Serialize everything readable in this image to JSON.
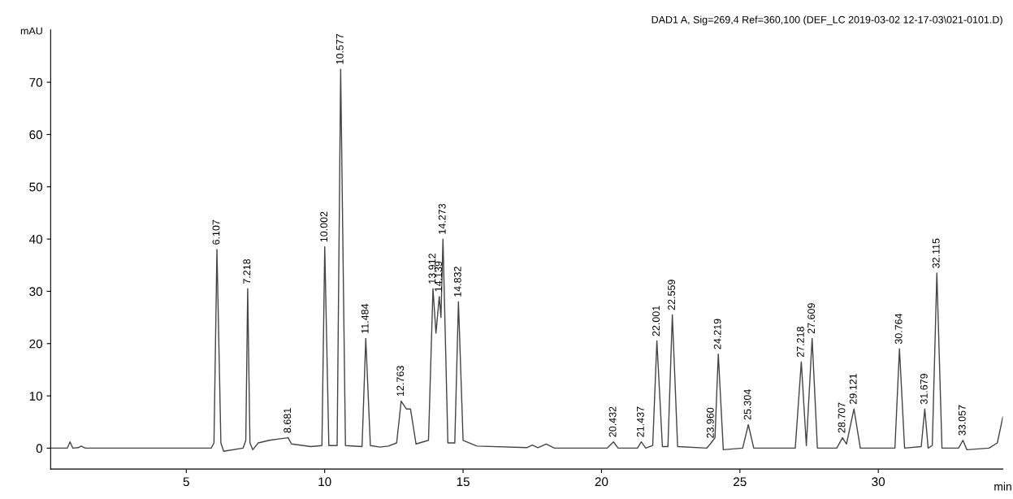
{
  "chart_data": {
    "type": "line",
    "title": "DAD1 A, Sig=269,4 Ref=360,100 (DEF_LC 2019-03-02 12-17-03\\021-0101.D)",
    "ylabel": "mAU",
    "xlabel": "min",
    "xlim": [
      0.1,
      34.5
    ],
    "ylim": [
      -4,
      80
    ],
    "xticks": [
      5,
      10,
      15,
      20,
      25,
      30
    ],
    "yticks": [
      0,
      10,
      20,
      30,
      40,
      50,
      60,
      70
    ],
    "grid": false,
    "legend": false,
    "series": [
      {
        "color": "#444444",
        "x": [
          0.1,
          0.7,
          0.8,
          0.9,
          1.1,
          1.2,
          1.35,
          5.9,
          6.0,
          6.107,
          6.25,
          6.35,
          7.05,
          7.15,
          7.218,
          7.3,
          7.4,
          7.6,
          8.0,
          8.4,
          8.681,
          8.8,
          9.5,
          9.9,
          10.002,
          10.15,
          10.45,
          10.577,
          10.75,
          11.35,
          11.484,
          11.65,
          12.0,
          12.3,
          12.6,
          12.763,
          12.95,
          13.1,
          13.3,
          13.75,
          13.912,
          14.02,
          14.139,
          14.2,
          14.273,
          14.45,
          14.7,
          14.832,
          15.0,
          15.5,
          17.3,
          17.5,
          17.7,
          18.0,
          18.3,
          20.2,
          20.432,
          20.6,
          21.3,
          21.437,
          21.6,
          21.85,
          22.001,
          22.2,
          22.4,
          22.559,
          22.75,
          23.8,
          23.96,
          24.1,
          24.219,
          24.4,
          25.1,
          25.304,
          25.5,
          27.0,
          27.218,
          27.4,
          27.609,
          27.8,
          28.5,
          28.707,
          28.85,
          29.121,
          29.35,
          30.6,
          30.764,
          30.95,
          31.55,
          31.679,
          31.8,
          31.95,
          32.115,
          32.3,
          32.9,
          33.057,
          33.2,
          34.0,
          34.3,
          34.5
        ],
        "values": [
          0,
          0,
          1.2,
          0,
          0.1,
          0.4,
          0,
          0,
          1,
          38,
          1,
          -0.6,
          0,
          1.5,
          30.5,
          1,
          -0.3,
          1,
          1.5,
          1.8,
          2,
          0.8,
          0.3,
          0.5,
          38.5,
          0.5,
          0.5,
          72.5,
          0.5,
          0.3,
          21,
          0.5,
          0.2,
          0.4,
          1,
          9,
          7.5,
          7.5,
          0.8,
          1.5,
          30.5,
          22,
          29,
          25,
          40,
          1,
          1,
          28,
          1.5,
          0.4,
          0.1,
          0.6,
          0.1,
          0.8,
          0,
          0,
          1.2,
          0,
          0,
          1.2,
          0,
          0.5,
          20.5,
          0.3,
          0.3,
          25.5,
          0.3,
          0,
          1,
          2,
          18,
          -0.3,
          0,
          4.5,
          0,
          0,
          16.5,
          0.5,
          21,
          0,
          0,
          2,
          0.8,
          7.5,
          0,
          0,
          19,
          0,
          0.3,
          7.5,
          0,
          0.5,
          33.5,
          0,
          0,
          1.5,
          -0.3,
          0,
          1,
          6
        ]
      }
    ],
    "annotations": [
      {
        "text": "6.107",
        "x": 6.107,
        "y": 38
      },
      {
        "text": "7.218",
        "x": 7.218,
        "y": 30.5
      },
      {
        "text": "8.681",
        "x": 8.681,
        "y": 2
      },
      {
        "text": "10.002",
        "x": 10.002,
        "y": 38.5
      },
      {
        "text": "10.577",
        "x": 10.577,
        "y": 72.5
      },
      {
        "text": "11.484",
        "x": 11.484,
        "y": 21
      },
      {
        "text": "12.763",
        "x": 12.763,
        "y": 9
      },
      {
        "text": "13.912",
        "x": 13.912,
        "y": 30.5
      },
      {
        "text": "14.139",
        "x": 14.139,
        "y": 29
      },
      {
        "text": "14.273",
        "x": 14.273,
        "y": 40
      },
      {
        "text": "14.832",
        "x": 14.832,
        "y": 28
      },
      {
        "text": "20.432",
        "x": 20.432,
        "y": 1.2
      },
      {
        "text": "21.437",
        "x": 21.437,
        "y": 1.2
      },
      {
        "text": "22.001",
        "x": 22.001,
        "y": 20.5
      },
      {
        "text": "22.559",
        "x": 22.559,
        "y": 25.5
      },
      {
        "text": "23.960",
        "x": 23.96,
        "y": 1
      },
      {
        "text": "24.219",
        "x": 24.219,
        "y": 18
      },
      {
        "text": "25.304",
        "x": 25.304,
        "y": 4.5
      },
      {
        "text": "27.218",
        "x": 27.218,
        "y": 16.5
      },
      {
        "text": "27.609",
        "x": 27.609,
        "y": 21
      },
      {
        "text": "28.707",
        "x": 28.707,
        "y": 2
      },
      {
        "text": "29.121",
        "x": 29.121,
        "y": 7.5
      },
      {
        "text": "30.764",
        "x": 30.764,
        "y": 19
      },
      {
        "text": "31.679",
        "x": 31.679,
        "y": 7.5
      },
      {
        "text": "32.115",
        "x": 32.115,
        "y": 33.5
      },
      {
        "text": "33.057",
        "x": 33.057,
        "y": 1.5
      }
    ]
  }
}
